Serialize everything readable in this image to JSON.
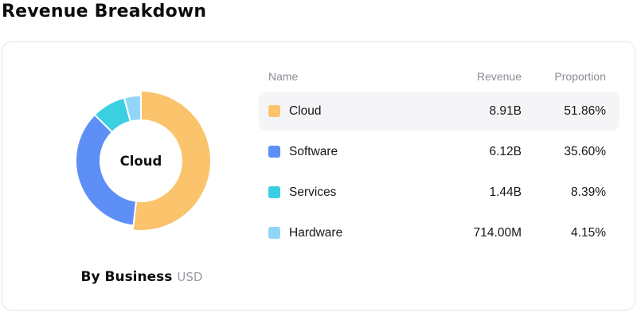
{
  "page_title": "Revenue Breakdown",
  "colors": {
    "card-border": "#e7e7f0",
    "row-highlight": "#f5f5f7",
    "header-gray": "#8b8b94",
    "muted": "#9b9ba3",
    "cloud": "#fac36c",
    "software": "#5e8ff7",
    "services": "#3bcfe2",
    "hardware": "#93d5f8"
  },
  "table": {
    "columns": {
      "name": "Name",
      "revenue": "Revenue",
      "proportion": "Proportion"
    }
  },
  "byline": {
    "label": "By Business",
    "unit": "USD"
  },
  "chart_data": {
    "type": "pie",
    "title": "Revenue Breakdown",
    "donut": true,
    "center_label": "Cloud",
    "grouping": "By Business",
    "unit": "USD",
    "start_angle_deg": 0,
    "direction": "clockwise",
    "legend_position": "right-table",
    "segments": [
      {
        "name": "Cloud",
        "revenue": "8.91B",
        "proportion": "51.86%",
        "proportion_pct": 51.86,
        "color": "#fac36c",
        "selected": true
      },
      {
        "name": "Software",
        "revenue": "6.12B",
        "proportion": "35.60%",
        "proportion_pct": 35.6,
        "color": "#5e8ff7",
        "selected": false
      },
      {
        "name": "Services",
        "revenue": "1.44B",
        "proportion": "8.39%",
        "proportion_pct": 8.39,
        "color": "#3bcfe2",
        "selected": false
      },
      {
        "name": "Hardware",
        "revenue": "714.00M",
        "proportion": "4.15%",
        "proportion_pct": 4.15,
        "color": "#93d5f8",
        "selected": false
      }
    ]
  }
}
